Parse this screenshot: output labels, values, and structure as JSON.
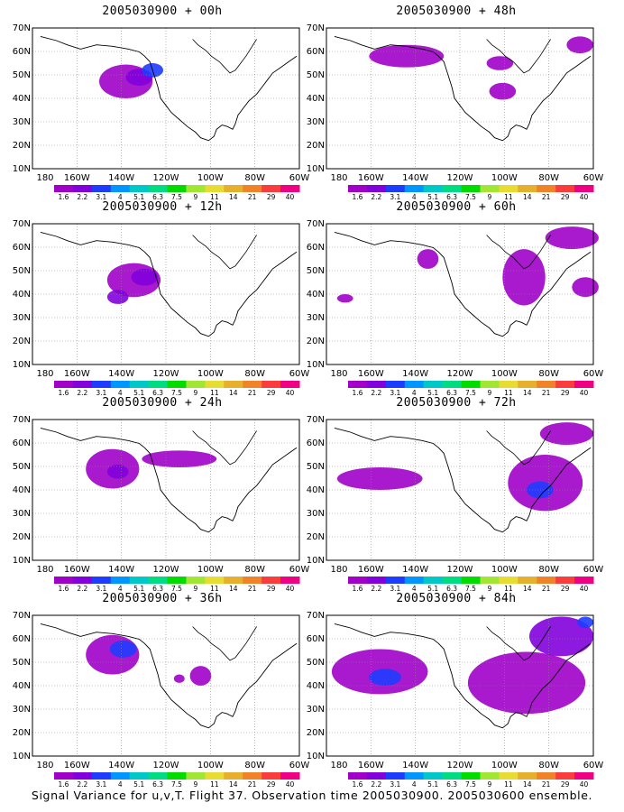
{
  "caption": "Signal Variance for u,v,T. Flight 37. Observation time 2005030900. 2005030600 ensemble.",
  "axes": {
    "lat_labels": [
      "70N",
      "60N",
      "50N",
      "40N",
      "30N",
      "20N",
      "10N"
    ],
    "lon_labels": [
      "180",
      "160W",
      "140W",
      "120W",
      "100W",
      "80W",
      "60W"
    ]
  },
  "colorbar": {
    "labels": [
      "1.6",
      "2.2",
      "3.1",
      "4",
      "5.1",
      "6.3",
      "7.5",
      "9",
      "11",
      "14",
      "21",
      "29",
      "40"
    ],
    "colors": [
      "#a000c8",
      "#8200dc",
      "#1e3cff",
      "#0096ff",
      "#00c8c8",
      "#00dc82",
      "#00dc00",
      "#a0e632",
      "#e6dc32",
      "#e6af2d",
      "#f08228",
      "#fa3c3c",
      "#f00082"
    ]
  },
  "panels": [
    {
      "title": "2005030900 + 00h"
    },
    {
      "title": "2005030900 + 48h"
    },
    {
      "title": "2005030900 + 12h"
    },
    {
      "title": "2005030900 + 60h"
    },
    {
      "title": "2005030900 + 24h"
    },
    {
      "title": "2005030900 + 72h"
    },
    {
      "title": "2005030900 + 36h"
    },
    {
      "title": "2005030900 + 84h"
    }
  ]
}
